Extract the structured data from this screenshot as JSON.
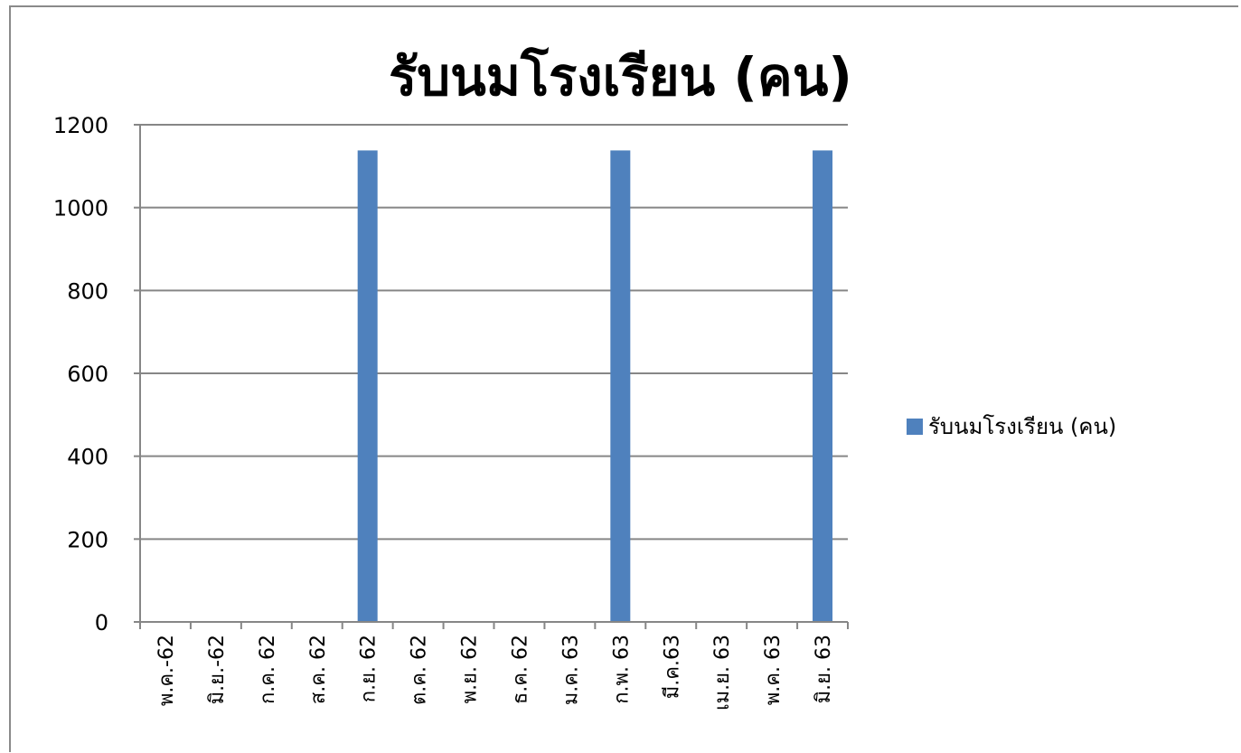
{
  "chart_data": {
    "type": "bar",
    "title": "รับนมโรงเรียน (คน)",
    "xlabel": "",
    "ylabel": "",
    "categories": [
      "พ.ค.-62",
      "มิ.ย.-62",
      "ก.ค. 62",
      "ส.ค. 62",
      "ก.ย. 62",
      "ต.ค. 62",
      "พ.ย. 62",
      "ธ.ค. 62",
      "ม.ค. 63",
      "ก.พ. 63",
      "มี.ค.63",
      "เม.ย. 63",
      "พ.ค. 63",
      "มิ.ย. 63"
    ],
    "series": [
      {
        "name": "รับนมโรงเรียน (คน)",
        "color": "#4f81bd",
        "values": [
          0,
          0,
          0,
          0,
          1138,
          0,
          0,
          0,
          0,
          1138,
          0,
          0,
          0,
          1138
        ]
      }
    ],
    "ylim": [
      0,
      1200
    ],
    "yticks": [
      0,
      200,
      400,
      600,
      800,
      1000,
      1200
    ],
    "grid": true,
    "legend_position": "right"
  }
}
